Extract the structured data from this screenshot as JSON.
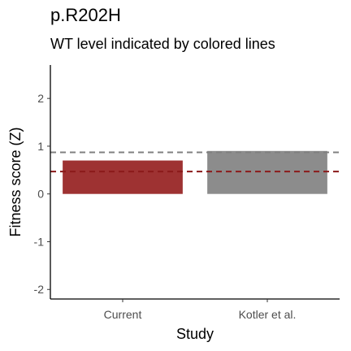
{
  "chart_data": {
    "type": "bar",
    "title": "p.R202H",
    "subtitle": "WT level indicated by colored lines",
    "xlabel": "Study",
    "ylabel": "Fitness score (Z)",
    "categories": [
      "Current",
      "Kotler et al."
    ],
    "values": [
      0.7,
      0.9
    ],
    "bar_colors": [
      "#9e3232",
      "#8c8c8c"
    ],
    "ylim": [
      -2.2,
      2.7
    ],
    "yticks": [
      -2,
      -1,
      0,
      1,
      2
    ],
    "ytick_labels": [
      "-2",
      "-1",
      "0",
      "1",
      "2"
    ],
    "reference_lines": [
      {
        "value": 0.87,
        "color": "#808080",
        "style": "dashed"
      },
      {
        "value": 0.47,
        "color": "#8b1a1a",
        "style": "dashed"
      }
    ],
    "grid": false,
    "legend": "none"
  }
}
